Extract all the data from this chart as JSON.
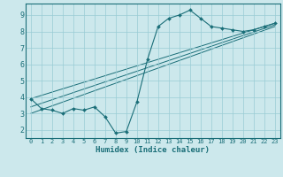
{
  "xlabel": "Humidex (Indice chaleur)",
  "background_color": "#cce8ec",
  "grid_color": "#99ccd4",
  "line_color": "#1a6e78",
  "xlim": [
    -0.5,
    23.5
  ],
  "ylim": [
    1.5,
    9.7
  ],
  "xticks": [
    0,
    1,
    2,
    3,
    4,
    5,
    6,
    7,
    8,
    9,
    10,
    11,
    12,
    13,
    14,
    15,
    16,
    17,
    18,
    19,
    20,
    21,
    22,
    23
  ],
  "yticks": [
    2,
    3,
    4,
    5,
    6,
    7,
    8,
    9
  ],
  "curve1_x": [
    0,
    1,
    2,
    3,
    4,
    5,
    6,
    7,
    8,
    9,
    10,
    11,
    12,
    13,
    14,
    15,
    16,
    17,
    18,
    19,
    20,
    21,
    22,
    23
  ],
  "curve1_y": [
    3.9,
    3.3,
    3.2,
    3.0,
    3.3,
    3.2,
    3.4,
    2.8,
    1.8,
    1.9,
    3.7,
    6.3,
    8.3,
    8.8,
    9.0,
    9.3,
    8.8,
    8.3,
    8.2,
    8.1,
    8.0,
    8.1,
    8.3,
    8.5
  ],
  "line1_x": [
    0,
    23
  ],
  "line1_y": [
    3.9,
    8.5
  ],
  "line2_x": [
    0,
    23
  ],
  "line2_y": [
    3.0,
    8.3
  ],
  "line3_x": [
    0,
    23
  ],
  "line3_y": [
    3.4,
    8.4
  ]
}
